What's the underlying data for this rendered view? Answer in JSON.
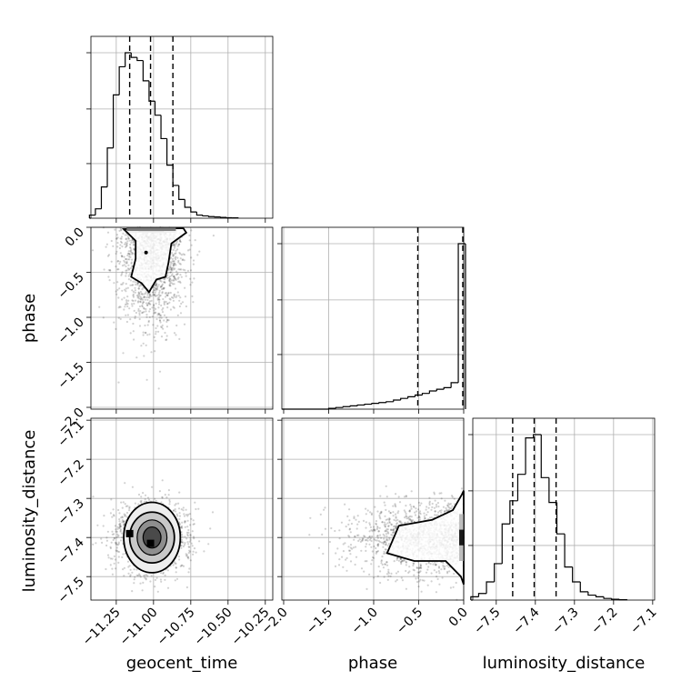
{
  "chart_data": {
    "type": "corner",
    "parameters": [
      "geocent_time",
      "phase",
      "luminosity_distance"
    ],
    "axis_labels": {
      "geocent_time": "geocent_time",
      "phase": "phase",
      "luminosity_distance": "luminosity_distance"
    },
    "ranges": {
      "geocent_time": [
        -11.42,
        -10.2
      ],
      "phase": [
        -2.02,
        0.0
      ],
      "luminosity_distance": [
        -7.56,
        -7.095
      ]
    },
    "ticks": {
      "geocent_time": [
        -11.25,
        -11.0,
        -10.75,
        -10.5,
        -10.25
      ],
      "phase": [
        -2.0,
        -1.5,
        -1.0,
        -0.5,
        0.0
      ],
      "luminosity_distance": [
        -7.5,
        -7.4,
        -7.3,
        -7.2,
        -7.1
      ]
    },
    "tick_labels": {
      "geocent_time": [
        "−11.25",
        "−11.00",
        "−10.75",
        "−10.50",
        "−10.25"
      ],
      "phase": [
        "−2.0",
        "−1.5",
        "−1.0",
        "−0.5",
        "0.0"
      ],
      "luminosity_distance": [
        "−7.5",
        "−7.4",
        "−7.3",
        "−7.2",
        "−7.1"
      ],
      "luminosity_distance_y": [
        "−7.5",
        "−7.4",
        "−7.3",
        "−7.2",
        "−7.1"
      ]
    },
    "histograms": {
      "geocent_time": {
        "x": [
          -11.41,
          -11.37,
          -11.33,
          -11.29,
          -11.25,
          -11.21,
          -11.17,
          -11.13,
          -11.09,
          -11.05,
          -11.01,
          -10.97,
          -10.93,
          -10.89,
          -10.85,
          -10.81,
          -10.77,
          -10.73,
          -10.69,
          -10.65,
          -10.61,
          -10.57,
          -10.53,
          -10.49,
          -10.45
        ],
        "counts": [
          0.02,
          0.06,
          0.2,
          0.45,
          0.79,
          0.97,
          1.06,
          1.03,
          1.01,
          0.88,
          0.75,
          0.66,
          0.51,
          0.34,
          0.21,
          0.12,
          0.07,
          0.04,
          0.02,
          0.015,
          0.01,
          0.008,
          0.005,
          0.003,
          0.002
        ],
        "quantiles": [
          -11.16,
          -11.02,
          -10.87
        ]
      },
      "phase": {
        "x": [
          -1.46,
          -1.38,
          -1.3,
          -1.22,
          -1.14,
          -1.06,
          -0.98,
          -0.9,
          -0.82,
          -0.74,
          -0.66,
          -0.58,
          -0.5,
          -0.42,
          -0.34,
          -0.26,
          -0.18,
          -0.1,
          -0.02
        ],
        "counts": [
          0.005,
          0.01,
          0.015,
          0.02,
          0.025,
          0.03,
          0.035,
          0.04,
          0.045,
          0.055,
          0.065,
          0.075,
          0.085,
          0.095,
          0.11,
          0.12,
          0.13,
          0.16,
          1.0
        ],
        "quantiles": [
          -0.51,
          0.0
        ]
      },
      "luminosity_distance": {
        "x": [
          -7.555,
          -7.535,
          -7.515,
          -7.495,
          -7.475,
          -7.455,
          -7.435,
          -7.415,
          -7.395,
          -7.375,
          -7.355,
          -7.335,
          -7.315,
          -7.295,
          -7.275,
          -7.255,
          -7.235,
          -7.215,
          -7.195,
          -7.175
        ],
        "counts": [
          0.02,
          0.04,
          0.11,
          0.22,
          0.46,
          0.6,
          0.76,
          0.98,
          1.0,
          0.74,
          0.59,
          0.4,
          0.2,
          0.11,
          0.05,
          0.03,
          0.02,
          0.01,
          0.005,
          0.002
        ],
        "quantiles": [
          -7.458,
          -7.403,
          -7.347
        ]
      }
    },
    "grid": true,
    "legend": "none"
  }
}
